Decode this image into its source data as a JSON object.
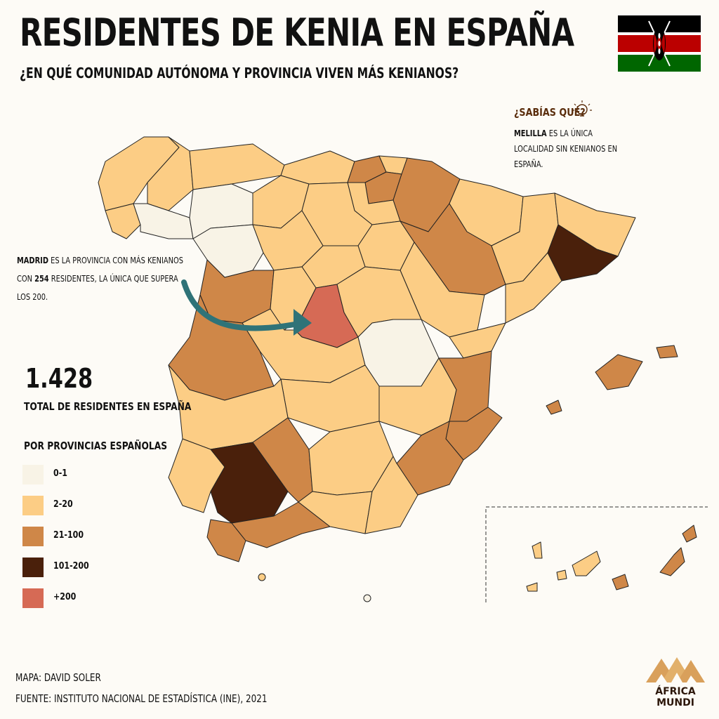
{
  "title": "RESIDENTES DE KENIA EN ESPAÑA",
  "subtitle": "¿EN QUÉ COMUNIDAD AUTÓNOMA Y PROVINCIA VIVEN MÁS KENIANOS?",
  "fact": {
    "title": "¿SABÍAS QUÉ?",
    "bold": "MELILLA",
    "text": " ES LA ÚNICA LOCALIDAD SIN KENIANOS EN ESPAÑA."
  },
  "madrid_note": {
    "bold_name": "MADRID",
    "text1": " ES LA PROVINCIA CON MÁS KENIANOS CON ",
    "bold_value": "254",
    "text2": " RESIDENTES, LA ÚNICA QUE SUPERA LOS 200."
  },
  "total": {
    "value": "1.428",
    "label": "TOTAL DE RESIDENTES EN ESPAÑA"
  },
  "legend": {
    "title": "POR PROVINCIAS ESPAÑOLAS",
    "items": [
      {
        "label": "0-1",
        "color": "#f8f3e6"
      },
      {
        "label": "2-20",
        "color": "#fccd85"
      },
      {
        "label": "21-100",
        "color": "#cf8748"
      },
      {
        "label": "101-200",
        "color": "#4a200b"
      },
      {
        "label": "+200",
        "color": "#d66a55"
      }
    ]
  },
  "credits": {
    "map": "MAPA: DAVID SOLER",
    "source": "FUENTE: INSTITUTO NACIONAL DE ESTADÍSTICA (INE), 2021"
  },
  "logo": {
    "line1": "ÁFRICA",
    "line2": "MUNDI"
  },
  "colors": {
    "band_0_1": "#f8f3e6",
    "band_2_20": "#fccd85",
    "band_21_100": "#cf8748",
    "band_101_200": "#4a200b",
    "band_200_plus": "#d66a55",
    "arrow": "#2f7378",
    "flag_black": "#000000",
    "flag_red": "#bb0000",
    "flag_green": "#006600"
  },
  "map_regions": [
    {
      "id": "madrid",
      "band": "+200"
    },
    {
      "id": "barcelona",
      "band": "101-200"
    },
    {
      "id": "sevilla",
      "band": "101-200"
    },
    {
      "id": "leon",
      "band": "0-1"
    },
    {
      "id": "zamora",
      "band": "0-1"
    },
    {
      "id": "cuenca",
      "band": "0-1"
    },
    {
      "id": "melilla",
      "band": "0-1"
    }
  ]
}
